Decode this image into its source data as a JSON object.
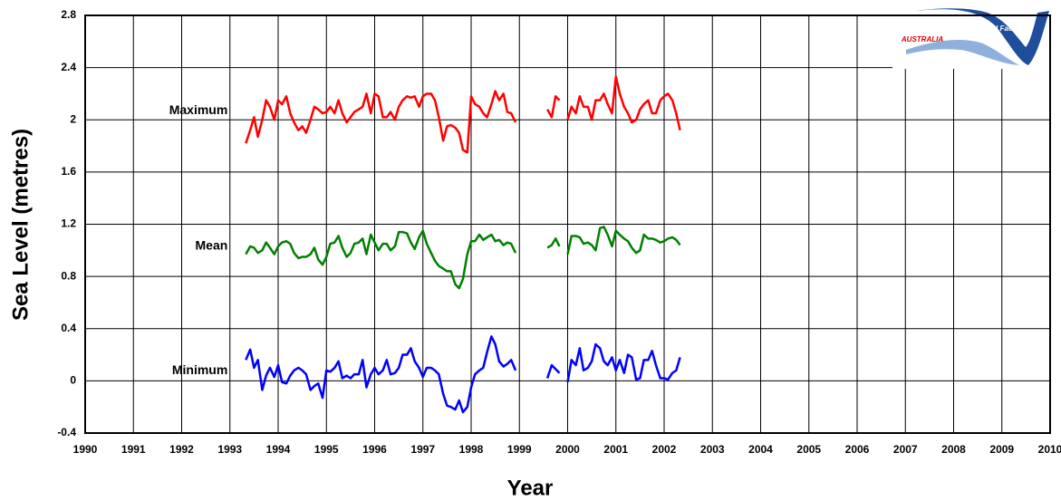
{
  "chart_data": {
    "type": "line",
    "x_label": "Year",
    "y_label": "Sea Level (metres)",
    "logo_text": [
      "National Tidal Facility",
      "AUSTRALIA"
    ],
    "xlim": [
      1990,
      2010
    ],
    "xticks": [
      1990,
      1991,
      1992,
      1993,
      1994,
      1995,
      1996,
      1997,
      1998,
      1999,
      2000,
      2001,
      2002,
      2003,
      2004,
      2005,
      2006,
      2007,
      2008,
      2009,
      2010
    ],
    "ylim": [
      -0.4,
      2.8
    ],
    "yticks": [
      -0.4,
      0,
      0.4,
      0.8,
      1.2,
      1.6,
      2,
      2.4,
      2.8
    ],
    "grid": true,
    "x": [
      1993.33,
      1993.42,
      1993.5,
      1993.58,
      1993.67,
      1993.75,
      1993.83,
      1993.92,
      1994.0,
      1994.08,
      1994.17,
      1994.25,
      1994.33,
      1994.42,
      1994.5,
      1994.58,
      1994.67,
      1994.75,
      1994.83,
      1994.92,
      1995.0,
      1995.08,
      1995.17,
      1995.25,
      1995.33,
      1995.42,
      1995.5,
      1995.58,
      1995.67,
      1995.75,
      1995.83,
      1995.92,
      1996.0,
      1996.08,
      1996.17,
      1996.25,
      1996.33,
      1996.42,
      1996.5,
      1996.58,
      1996.67,
      1996.75,
      1996.83,
      1996.92,
      1997.0,
      1997.08,
      1997.17,
      1997.25,
      1997.33,
      1997.42,
      1997.5,
      1997.58,
      1997.67,
      1997.75,
      1997.83,
      1997.92,
      1998.0,
      1998.08,
      1998.17,
      1998.25,
      1998.33,
      1998.42,
      1998.5,
      1998.58,
      1998.67,
      1998.75,
      1998.83,
      1998.92,
      1999.25,
      1999.58,
      1999.67,
      1999.75,
      1999.83,
      1999.92,
      2000.0,
      2000.08,
      2000.17,
      2000.25,
      2000.33,
      2000.42,
      2000.5,
      2000.58,
      2000.67,
      2000.75,
      2000.83,
      2000.92,
      2001.0,
      2001.08,
      2001.17,
      2001.25,
      2001.33,
      2001.42,
      2001.5,
      2001.58,
      2001.67,
      2001.75,
      2001.83,
      2001.92,
      2002.0,
      2002.08,
      2002.17,
      2002.25,
      2002.33
    ],
    "series": [
      {
        "name": "Maximum",
        "color": "#ff0000",
        "values": [
          1.82,
          1.92,
          2.02,
          1.87,
          2.0,
          2.15,
          2.1,
          2.0,
          2.15,
          2.12,
          2.18,
          2.05,
          1.98,
          1.92,
          1.95,
          1.9,
          2.0,
          2.1,
          2.08,
          2.05,
          2.06,
          2.1,
          2.05,
          2.15,
          2.05,
          1.98,
          2.02,
          2.06,
          2.08,
          2.1,
          2.2,
          2.05,
          2.2,
          2.18,
          2.02,
          2.02,
          2.06,
          2.0,
          2.1,
          2.15,
          2.18,
          2.17,
          2.18,
          2.1,
          2.18,
          2.2,
          2.2,
          2.15,
          2.02,
          1.84,
          1.95,
          1.96,
          1.94,
          1.9,
          1.77,
          1.75,
          2.18,
          2.12,
          2.1,
          2.05,
          2.02,
          2.12,
          2.22,
          2.15,
          2.2,
          2.06,
          2.05,
          1.98,
          null,
          2.08,
          2.02,
          2.18,
          2.15,
          null,
          2.0,
          2.1,
          2.05,
          2.18,
          2.1,
          2.1,
          2.0,
          2.15,
          2.15,
          2.2,
          2.12,
          2.05,
          2.33,
          2.2,
          2.1,
          2.05,
          1.98,
          2.0,
          2.08,
          2.12,
          2.15,
          2.05,
          2.05,
          2.15,
          2.18,
          2.2,
          2.15,
          2.05,
          1.92
        ]
      },
      {
        "name": "Mean",
        "color": "#008000",
        "values": [
          0.97,
          1.03,
          1.02,
          0.98,
          1.0,
          1.06,
          1.02,
          0.97,
          1.03,
          1.06,
          1.07,
          1.05,
          0.98,
          0.94,
          0.95,
          0.95,
          0.97,
          1.02,
          0.93,
          0.89,
          0.95,
          1.05,
          1.06,
          1.11,
          1.02,
          0.95,
          0.98,
          1.05,
          1.06,
          1.09,
          0.97,
          1.12,
          1.06,
          1.0,
          1.05,
          1.05,
          1.0,
          1.03,
          1.14,
          1.14,
          1.13,
          1.06,
          1.01,
          1.1,
          1.15,
          1.05,
          0.98,
          0.92,
          0.88,
          0.86,
          0.84,
          0.84,
          0.74,
          0.71,
          0.78,
          0.97,
          1.07,
          1.07,
          1.12,
          1.08,
          1.1,
          1.12,
          1.07,
          1.08,
          1.04,
          1.06,
          1.05,
          0.98,
          null,
          1.02,
          1.04,
          1.09,
          1.03,
          null,
          0.97,
          1.11,
          1.11,
          1.1,
          1.05,
          1.06,
          1.04,
          1.0,
          1.17,
          1.18,
          1.12,
          1.03,
          1.15,
          1.12,
          1.09,
          1.07,
          1.02,
          0.98,
          1.0,
          1.12,
          1.09,
          1.09,
          1.08,
          1.06,
          1.07,
          1.09,
          1.1,
          1.08,
          1.04
        ]
      },
      {
        "name": "Minimum",
        "color": "#0000ff",
        "values": [
          0.16,
          0.24,
          0.1,
          0.16,
          -0.07,
          0.04,
          0.1,
          0.03,
          0.12,
          -0.01,
          -0.02,
          0.04,
          0.08,
          0.1,
          0.08,
          0.05,
          -0.07,
          -0.04,
          -0.02,
          -0.13,
          0.08,
          0.07,
          0.1,
          0.15,
          0.02,
          0.04,
          0.02,
          0.05,
          0.05,
          0.16,
          -0.05,
          0.05,
          0.1,
          0.05,
          0.08,
          0.16,
          0.05,
          0.06,
          0.1,
          0.2,
          0.2,
          0.25,
          0.15,
          0.1,
          0.03,
          0.1,
          0.1,
          0.08,
          0.05,
          -0.1,
          -0.19,
          -0.2,
          -0.22,
          -0.15,
          -0.24,
          -0.2,
          -0.05,
          0.05,
          0.08,
          0.1,
          0.22,
          0.34,
          0.28,
          0.15,
          0.11,
          0.13,
          0.16,
          0.08,
          null,
          0.02,
          0.12,
          0.09,
          0.06,
          null,
          -0.01,
          0.16,
          0.12,
          0.25,
          0.08,
          0.1,
          0.15,
          0.28,
          0.25,
          0.15,
          0.12,
          0.18,
          0.08,
          0.16,
          0.06,
          0.2,
          0.18,
          0.01,
          0.02,
          0.16,
          0.16,
          0.23,
          0.12,
          0.02,
          0.02,
          0.01,
          0.06,
          0.08,
          0.18
        ]
      }
    ]
  }
}
